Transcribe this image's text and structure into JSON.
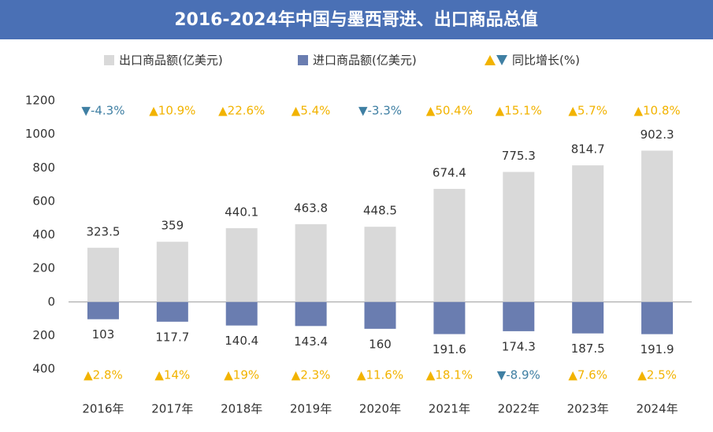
{
  "chart_data": {
    "type": "bar",
    "title": "2016-2024年中国与墨西哥进、出口商品总值",
    "categories": [
      "2016年",
      "2017年",
      "2018年",
      "2019年",
      "2020年",
      "2021年",
      "2022年",
      "2023年",
      "2024年"
    ],
    "series": [
      {
        "name": "出口商品额(亿美元)",
        "color": "#d9d9d9",
        "values": [
          323.5,
          359,
          440.1,
          463.8,
          448.5,
          674.4,
          775.3,
          814.7,
          902.3
        ]
      },
      {
        "name": "进口商品额(亿美元)",
        "color": "#6a7db0",
        "values": [
          -103,
          -117.7,
          -140.4,
          -143.4,
          -160,
          -191.6,
          -174.3,
          -187.5,
          -191.9
        ],
        "value_labels": [
          "103",
          "117.7",
          "140.4",
          "143.4",
          "160",
          "191.6",
          "174.3",
          "187.5",
          "191.9"
        ]
      }
    ],
    "growth_legend": "同比增长(%)",
    "up_color": "#f2b300",
    "down_color": "#3f7fa3",
    "growth": [
      {
        "values": [
          -4.3,
          10.9,
          22.6,
          5.4,
          -3.3,
          50.4,
          15.1,
          5.7,
          10.8
        ],
        "value_labels": [
          "▼-4.3%",
          "▲10.9%",
          "▲22.6%",
          "▲5.4%",
          "▼-3.3%",
          "▲50.4%",
          "▲15.1%",
          "▲5.7%",
          "▲10.8%"
        ]
      },
      {
        "values": [
          2.8,
          14,
          19,
          2.3,
          11.6,
          18.1,
          -8.9,
          7.6,
          2.5
        ],
        "value_labels": [
          "▲2.8%",
          "▲14%",
          "▲19%",
          "▲2.3%",
          "▲11.6%",
          "▲18.1%",
          "▼-8.9%",
          "▲7.6%",
          "▲2.5%"
        ]
      }
    ],
    "ylim": [
      -400,
      1200
    ],
    "yticks": [
      {
        "value": -400,
        "label": "400"
      },
      {
        "value": -200,
        "label": "200"
      },
      0,
      200,
      400,
      600,
      800,
      1000,
      1200
    ],
    "grid": false
  }
}
